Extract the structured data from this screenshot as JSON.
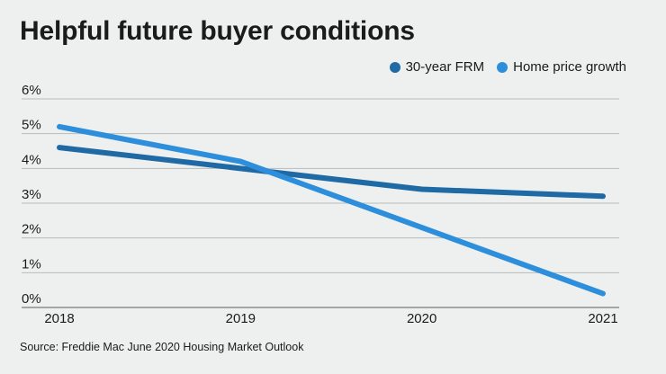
{
  "title": "Helpful future buyer conditions",
  "source": "Source: Freddie Mac June 2020 Housing Market Outlook",
  "chart_data": {
    "type": "line",
    "title": "Helpful future buyer conditions",
    "xlabel": "",
    "ylabel": "",
    "x": [
      "2018",
      "2019",
      "2020",
      "2021"
    ],
    "ylim": [
      0,
      6
    ],
    "y_ticks": [
      "0%",
      "1%",
      "2%",
      "3%",
      "4%",
      "5%",
      "6%"
    ],
    "grid": true,
    "legend_position": "top-right",
    "series": [
      {
        "name": "30-year FRM",
        "color": "#1f6aa5",
        "values": [
          4.6,
          4.0,
          3.4,
          3.2
        ]
      },
      {
        "name": "Home price growth",
        "color": "#2d8fdb",
        "values": [
          5.2,
          4.2,
          2.3,
          0.4
        ]
      }
    ]
  }
}
